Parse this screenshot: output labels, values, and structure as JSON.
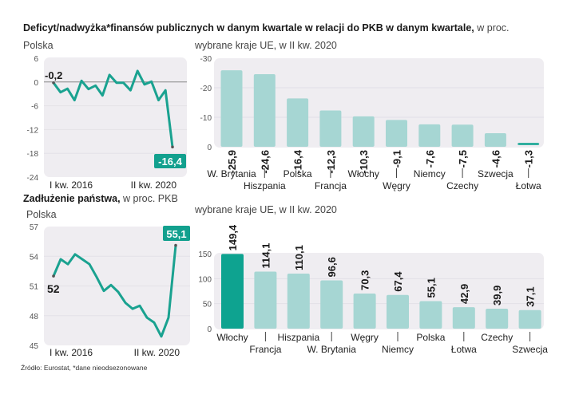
{
  "header": {
    "title_bold": "Deficyt/nadwyżka*finansów publicznych w danym kwartale w relacji do PKB w danym kwartale,",
    "title_light": " w proc."
  },
  "section2": {
    "title_bold": "Zadłużenie państwa,",
    "title_light": " w proc. PKB"
  },
  "source": "Źródło: Eurostat, *dane nieodsezonowane",
  "colors": {
    "line": "#1aa290",
    "bar": "#a6d6d3",
    "bar_highlight": "#0ea390",
    "panel": "#efedf1",
    "label_box": "#12a08e"
  },
  "chart_data": [
    {
      "id": "deficit-poland",
      "type": "line",
      "title": "Polska",
      "x_start_label": "I kw. 2016",
      "x_end_label": "II kw. 2020",
      "ylim": [
        -24,
        6
      ],
      "yticks": [
        6,
        0,
        -6,
        -12,
        -18,
        -24
      ],
      "reference_line": 0,
      "values": [
        -0.2,
        -2.6,
        -1.7,
        -4.6,
        0.3,
        -1.8,
        -0.9,
        -3.4,
        1.8,
        -0.2,
        -0.2,
        -2.1,
        2.8,
        -0.6,
        0.1,
        -4.6,
        -2.1,
        -16.4
      ],
      "first_label": "-0,2",
      "last_label": "-16,4"
    },
    {
      "id": "deficit-eu",
      "type": "bar",
      "title": "wybrane kraje UE, w II kw. 2020",
      "categories": [
        "W. Brytania",
        "Hiszpania",
        "Polska",
        "Francja",
        "Włochy",
        "Węgry",
        "Niemcy",
        "Czechy",
        "Szwecja",
        "Łotwa"
      ],
      "values": [
        -25.9,
        -24.6,
        -16.4,
        -12.3,
        -10.3,
        -9.1,
        -7.6,
        -7.5,
        -4.6,
        -1.3
      ],
      "value_labels": [
        "-25,9",
        "-24,6",
        "-16,4",
        "-12,3",
        "-10,3",
        "-9,1",
        "-7,6",
        "-7,5",
        "-4,6",
        "-1,3"
      ],
      "highlight": [],
      "ylim": [
        -30,
        0
      ],
      "yticks": [
        0,
        -10,
        -20,
        -30
      ]
    },
    {
      "id": "debt-poland",
      "type": "line",
      "title": "Polska",
      "x_start_label": "I kw. 2016",
      "x_end_label": "II kw. 2020",
      "ylim": [
        45,
        57
      ],
      "yticks": [
        57,
        54,
        51,
        48,
        45
      ],
      "values": [
        52.0,
        53.7,
        53.2,
        54.2,
        53.7,
        53.2,
        51.9,
        50.5,
        51.1,
        50.4,
        49.3,
        48.7,
        49.0,
        47.8,
        47.3,
        45.9,
        47.8,
        55.1
      ],
      "first_label": "52",
      "last_label": "55,1"
    },
    {
      "id": "debt-eu",
      "type": "bar",
      "title": "wybrane kraje UE, w II kw. 2020",
      "categories": [
        "Włochy",
        "Francja",
        "Hiszpania",
        "W. Brytania",
        "Węgry",
        "Niemcy",
        "Polska",
        "Łotwa",
        "Czechy",
        "Szwecja"
      ],
      "values": [
        149.4,
        114.1,
        110.1,
        96.6,
        70.3,
        67.4,
        55.1,
        42.9,
        39.9,
        37.1
      ],
      "value_labels": [
        "149,4",
        "114,1",
        "110,1",
        "96,6",
        "70,3",
        "67,4",
        "55,1",
        "42,9",
        "39,9",
        "37,1"
      ],
      "highlight": [
        "Włochy"
      ],
      "ylim": [
        0,
        150
      ],
      "yticks": [
        150,
        100,
        50,
        0
      ]
    }
  ]
}
